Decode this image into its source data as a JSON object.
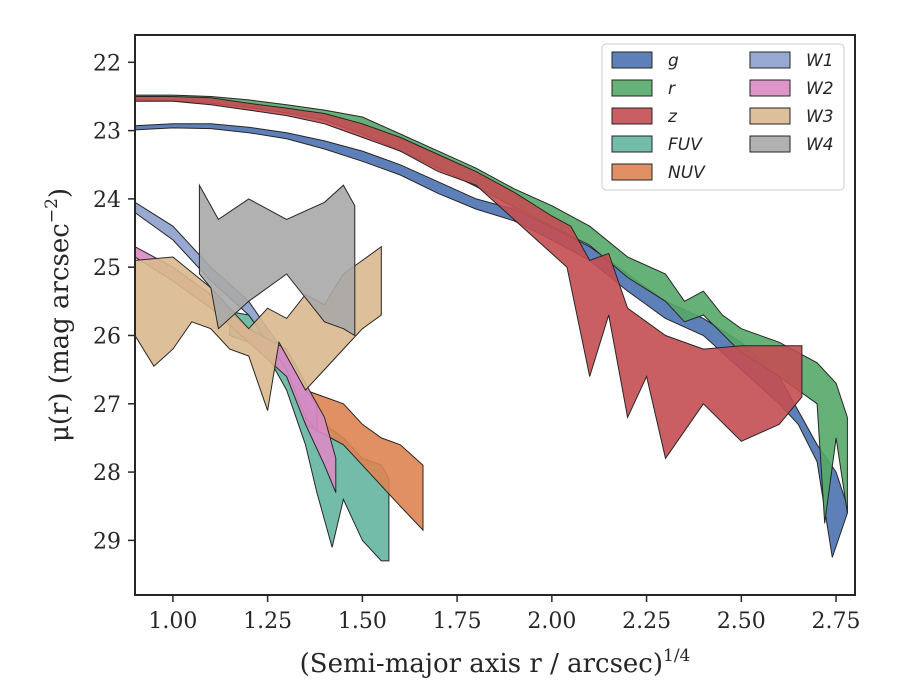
{
  "chart_data": {
    "type": "area",
    "title": "",
    "xlabel": "(Semi-major axis r / arcsec)",
    "xlabel_sup": "1/4",
    "ylabel": "μ(r) (mag arcsec",
    "ylabel_sup": "−2",
    "ylabel_tail": ")",
    "xlim": [
      0.9,
      2.8
    ],
    "ylim": [
      29.8,
      21.6
    ],
    "y_inverted": true,
    "grid": false,
    "legend_position": "top-right",
    "legend_columns": 2,
    "xticks": [
      1.0,
      1.25,
      1.5,
      1.75,
      2.0,
      2.25,
      2.5,
      2.75
    ],
    "xtick_labels": [
      "1.00",
      "1.25",
      "1.50",
      "1.75",
      "2.00",
      "2.25",
      "2.50",
      "2.75"
    ],
    "yticks": [
      22,
      23,
      24,
      25,
      26,
      27,
      28,
      29
    ],
    "ytick_labels": [
      "22",
      "23",
      "24",
      "25",
      "26",
      "27",
      "28",
      "29"
    ],
    "series": [
      {
        "name": "g",
        "color": "#4c72b0",
        "upper": [
          [
            0.9,
            22.93
          ],
          [
            1.0,
            22.9
          ],
          [
            1.1,
            22.9
          ],
          [
            1.2,
            22.95
          ],
          [
            1.3,
            23.03
          ],
          [
            1.4,
            23.15
          ],
          [
            1.5,
            23.3
          ],
          [
            1.6,
            23.5
          ],
          [
            1.7,
            23.75
          ],
          [
            1.8,
            24.0
          ],
          [
            1.9,
            24.15
          ],
          [
            2.0,
            24.42
          ],
          [
            2.1,
            24.7
          ],
          [
            2.2,
            25.1
          ],
          [
            2.3,
            25.5
          ],
          [
            2.4,
            25.75
          ],
          [
            2.5,
            26.1
          ],
          [
            2.6,
            26.6
          ],
          [
            2.65,
            27.1
          ],
          [
            2.7,
            27.6
          ],
          [
            2.75,
            28.0
          ],
          [
            2.78,
            28.5
          ]
        ],
        "lower": [
          [
            0.9,
            22.99
          ],
          [
            1.0,
            22.96
          ],
          [
            1.1,
            22.97
          ],
          [
            1.2,
            23.03
          ],
          [
            1.3,
            23.12
          ],
          [
            1.4,
            23.27
          ],
          [
            1.5,
            23.45
          ],
          [
            1.6,
            23.65
          ],
          [
            1.7,
            23.92
          ],
          [
            1.8,
            24.15
          ],
          [
            1.9,
            24.32
          ],
          [
            2.0,
            24.6
          ],
          [
            2.1,
            24.9
          ],
          [
            2.2,
            25.35
          ],
          [
            2.3,
            25.75
          ],
          [
            2.4,
            26.0
          ],
          [
            2.5,
            26.5
          ],
          [
            2.6,
            27.0
          ],
          [
            2.65,
            27.3
          ],
          [
            2.7,
            27.85
          ],
          [
            2.74,
            29.25
          ],
          [
            2.78,
            28.6
          ]
        ]
      },
      {
        "name": "r",
        "color": "#55a868",
        "upper": [
          [
            0.9,
            22.48
          ],
          [
            1.0,
            22.48
          ],
          [
            1.1,
            22.5
          ],
          [
            1.2,
            22.55
          ],
          [
            1.3,
            22.62
          ],
          [
            1.4,
            22.7
          ],
          [
            1.5,
            22.8
          ],
          [
            1.6,
            23.05
          ],
          [
            1.7,
            23.3
          ],
          [
            1.8,
            23.55
          ],
          [
            1.9,
            23.85
          ],
          [
            2.0,
            24.1
          ],
          [
            2.1,
            24.4
          ],
          [
            2.2,
            24.85
          ],
          [
            2.3,
            25.1
          ],
          [
            2.35,
            25.5
          ],
          [
            2.4,
            25.35
          ],
          [
            2.45,
            25.7
          ],
          [
            2.5,
            25.9
          ],
          [
            2.6,
            26.1
          ],
          [
            2.7,
            26.4
          ],
          [
            2.75,
            26.7
          ],
          [
            2.78,
            27.2
          ]
        ],
        "lower": [
          [
            0.9,
            22.55
          ],
          [
            1.0,
            22.56
          ],
          [
            1.1,
            22.6
          ],
          [
            1.2,
            22.66
          ],
          [
            1.3,
            22.74
          ],
          [
            1.4,
            22.85
          ],
          [
            1.5,
            23.05
          ],
          [
            1.6,
            23.3
          ],
          [
            1.7,
            23.55
          ],
          [
            1.8,
            23.82
          ],
          [
            1.9,
            24.12
          ],
          [
            2.0,
            24.4
          ],
          [
            2.1,
            24.68
          ],
          [
            2.2,
            25.15
          ],
          [
            2.3,
            25.5
          ],
          [
            2.35,
            25.8
          ],
          [
            2.4,
            25.7
          ],
          [
            2.5,
            26.25
          ],
          [
            2.6,
            26.6
          ],
          [
            2.7,
            27.0
          ],
          [
            2.72,
            28.75
          ],
          [
            2.75,
            27.5
          ],
          [
            2.78,
            28.6
          ]
        ]
      },
      {
        "name": "z",
        "color": "#c44e52",
        "upper": [
          [
            0.9,
            22.5
          ],
          [
            1.0,
            22.5
          ],
          [
            1.1,
            22.52
          ],
          [
            1.2,
            22.6
          ],
          [
            1.3,
            22.67
          ],
          [
            1.4,
            22.75
          ],
          [
            1.5,
            22.9
          ],
          [
            1.6,
            23.1
          ],
          [
            1.7,
            23.35
          ],
          [
            1.8,
            23.6
          ],
          [
            1.9,
            23.9
          ],
          [
            2.0,
            24.25
          ],
          [
            2.05,
            24.4
          ],
          [
            2.1,
            24.9
          ],
          [
            2.15,
            24.8
          ],
          [
            2.2,
            25.6
          ],
          [
            2.3,
            26.0
          ],
          [
            2.4,
            26.2
          ],
          [
            2.5,
            26.15
          ],
          [
            2.6,
            26.15
          ],
          [
            2.66,
            26.15
          ]
        ],
        "lower": [
          [
            0.9,
            22.57
          ],
          [
            1.0,
            22.57
          ],
          [
            1.1,
            22.62
          ],
          [
            1.2,
            22.7
          ],
          [
            1.3,
            22.78
          ],
          [
            1.4,
            22.9
          ],
          [
            1.5,
            23.1
          ],
          [
            1.6,
            23.3
          ],
          [
            1.7,
            23.6
          ],
          [
            1.8,
            23.8
          ],
          [
            1.9,
            24.3
          ],
          [
            2.0,
            24.8
          ],
          [
            2.04,
            25.0
          ],
          [
            2.1,
            26.6
          ],
          [
            2.15,
            25.7
          ],
          [
            2.2,
            27.2
          ],
          [
            2.25,
            26.6
          ],
          [
            2.3,
            27.8
          ],
          [
            2.4,
            27.0
          ],
          [
            2.5,
            27.55
          ],
          [
            2.6,
            27.3
          ],
          [
            2.66,
            26.9
          ]
        ]
      },
      {
        "name": "FUV",
        "color": "#64b5a0",
        "upper": [
          [
            1.15,
            25.65
          ],
          [
            1.2,
            25.7
          ],
          [
            1.25,
            26.0
          ],
          [
            1.3,
            26.4
          ],
          [
            1.35,
            27.0
          ],
          [
            1.4,
            27.3
          ],
          [
            1.45,
            27.5
          ],
          [
            1.5,
            27.8
          ],
          [
            1.55,
            27.9
          ],
          [
            1.57,
            28.1
          ]
        ],
        "lower": [
          [
            1.15,
            26.0
          ],
          [
            1.2,
            26.1
          ],
          [
            1.25,
            26.3
          ],
          [
            1.3,
            26.8
          ],
          [
            1.35,
            27.6
          ],
          [
            1.38,
            28.3
          ],
          [
            1.42,
            29.1
          ],
          [
            1.45,
            28.4
          ],
          [
            1.5,
            29.0
          ],
          [
            1.55,
            29.3
          ],
          [
            1.57,
            29.3
          ]
        ]
      },
      {
        "name": "NUV",
        "color": "#dd8452",
        "upper": [
          [
            1.35,
            26.8
          ],
          [
            1.4,
            26.9
          ],
          [
            1.45,
            27.0
          ],
          [
            1.5,
            27.3
          ],
          [
            1.55,
            27.5
          ],
          [
            1.6,
            27.6
          ],
          [
            1.66,
            27.9
          ]
        ],
        "lower": [
          [
            1.35,
            27.3
          ],
          [
            1.4,
            27.45
          ],
          [
            1.45,
            27.6
          ],
          [
            1.5,
            27.9
          ],
          [
            1.55,
            28.2
          ],
          [
            1.6,
            28.5
          ],
          [
            1.66,
            28.85
          ]
        ]
      },
      {
        "name": "W1",
        "color": "#8c9fcc",
        "upper": [
          [
            0.9,
            24.05
          ],
          [
            1.0,
            24.4
          ],
          [
            1.1,
            25.0
          ],
          [
            1.2,
            25.5
          ],
          [
            1.3,
            26.3
          ],
          [
            1.35,
            26.8
          ],
          [
            1.38,
            27.0
          ]
        ],
        "lower": [
          [
            0.9,
            24.2
          ],
          [
            1.0,
            24.6
          ],
          [
            1.1,
            25.2
          ],
          [
            1.2,
            25.7
          ],
          [
            1.3,
            26.5
          ],
          [
            1.35,
            27.2
          ],
          [
            1.38,
            27.4
          ]
        ]
      },
      {
        "name": "W2",
        "color": "#da8bc3",
        "upper": [
          [
            0.9,
            24.7
          ],
          [
            1.0,
            25.0
          ],
          [
            1.1,
            25.4
          ],
          [
            1.2,
            25.9
          ],
          [
            1.3,
            26.2
          ],
          [
            1.35,
            26.7
          ],
          [
            1.4,
            27.2
          ],
          [
            1.43,
            27.8
          ]
        ],
        "lower": [
          [
            0.9,
            24.85
          ],
          [
            1.0,
            25.2
          ],
          [
            1.1,
            25.6
          ],
          [
            1.2,
            26.1
          ],
          [
            1.3,
            26.6
          ],
          [
            1.35,
            27.3
          ],
          [
            1.4,
            27.9
          ],
          [
            1.43,
            28.3
          ]
        ]
      },
      {
        "name": "W3",
        "color": "#d9b88e",
        "upper": [
          [
            0.9,
            24.9
          ],
          [
            1.0,
            24.85
          ],
          [
            1.1,
            25.3
          ],
          [
            1.15,
            25.6
          ],
          [
            1.2,
            25.9
          ],
          [
            1.25,
            25.6
          ],
          [
            1.3,
            25.75
          ],
          [
            1.35,
            25.4
          ],
          [
            1.4,
            25.55
          ],
          [
            1.45,
            25.1
          ],
          [
            1.5,
            24.9
          ],
          [
            1.55,
            24.7
          ]
        ],
        "lower": [
          [
            0.9,
            26.0
          ],
          [
            0.95,
            26.45
          ],
          [
            1.0,
            26.2
          ],
          [
            1.05,
            25.8
          ],
          [
            1.1,
            25.9
          ],
          [
            1.15,
            26.2
          ],
          [
            1.2,
            26.3
          ],
          [
            1.25,
            27.1
          ],
          [
            1.28,
            26.1
          ],
          [
            1.3,
            26.3
          ],
          [
            1.35,
            26.8
          ],
          [
            1.4,
            26.5
          ],
          [
            1.45,
            26.2
          ],
          [
            1.5,
            25.9
          ],
          [
            1.55,
            25.7
          ]
        ]
      },
      {
        "name": "W4",
        "color": "#a8a8a8",
        "upper": [
          [
            1.07,
            23.8
          ],
          [
            1.12,
            24.3
          ],
          [
            1.2,
            24.0
          ],
          [
            1.3,
            24.3
          ],
          [
            1.4,
            24.05
          ],
          [
            1.45,
            23.8
          ],
          [
            1.48,
            24.1
          ]
        ],
        "lower": [
          [
            1.07,
            25.1
          ],
          [
            1.1,
            25.3
          ],
          [
            1.12,
            25.9
          ],
          [
            1.2,
            25.5
          ],
          [
            1.3,
            25.1
          ],
          [
            1.4,
            25.8
          ],
          [
            1.45,
            25.9
          ],
          [
            1.48,
            26.0
          ]
        ]
      }
    ]
  }
}
